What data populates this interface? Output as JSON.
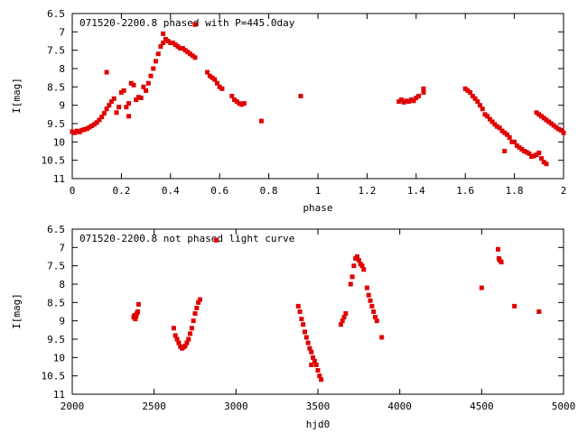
{
  "chart_data": [
    {
      "type": "scatter",
      "title": "071520-2200.8 phased with P=445.0day",
      "xlabel": "phase",
      "ylabel": "I[mag]",
      "xlim": [
        0,
        2
      ],
      "ylim": [
        11,
        6.5
      ],
      "y_inverted": true,
      "grid": false,
      "marker_color": "#e00000",
      "x_ticks": [
        {
          "v": 0,
          "label": "0"
        },
        {
          "v": 0.2,
          "label": "0.2"
        },
        {
          "v": 0.4,
          "label": "0.4"
        },
        {
          "v": 0.6,
          "label": "0.6"
        },
        {
          "v": 0.8,
          "label": "0.8"
        },
        {
          "v": 1,
          "label": "1"
        },
        {
          "v": 1.2,
          "label": "1.2"
        },
        {
          "v": 1.4,
          "label": "1.4"
        },
        {
          "v": 1.6,
          "label": "1.6"
        },
        {
          "v": 1.8,
          "label": "1.8"
        },
        {
          "v": 2,
          "label": "2"
        }
      ],
      "y_ticks": [
        {
          "v": 6.5,
          "label": "6.5"
        },
        {
          "v": 7,
          "label": "7"
        },
        {
          "v": 7.5,
          "label": "7.5"
        },
        {
          "v": 8,
          "label": "8"
        },
        {
          "v": 8.5,
          "label": "8.5"
        },
        {
          "v": 9,
          "label": "9"
        },
        {
          "v": 9.5,
          "label": "9.5"
        },
        {
          "v": 10,
          "label": "10"
        },
        {
          "v": 10.5,
          "label": "10.5"
        },
        {
          "v": 11,
          "label": "11"
        }
      ],
      "points": [
        [
          0.0,
          9.72
        ],
        [
          0.01,
          9.75
        ],
        [
          0.02,
          9.7
        ],
        [
          0.03,
          9.73
        ],
        [
          0.04,
          9.68
        ],
        [
          0.05,
          9.66
        ],
        [
          0.06,
          9.64
        ],
        [
          0.07,
          9.6
        ],
        [
          0.08,
          9.56
        ],
        [
          0.09,
          9.52
        ],
        [
          0.1,
          9.47
        ],
        [
          0.11,
          9.4
        ],
        [
          0.12,
          9.32
        ],
        [
          0.13,
          9.22
        ],
        [
          0.14,
          9.1
        ],
        [
          0.15,
          9.0
        ],
        [
          0.16,
          8.9
        ],
        [
          0.17,
          8.82
        ],
        [
          0.14,
          8.1
        ],
        [
          0.18,
          9.2
        ],
        [
          0.19,
          9.05
        ],
        [
          0.2,
          8.65
        ],
        [
          0.21,
          8.6
        ],
        [
          0.22,
          9.05
        ],
        [
          0.23,
          8.95
        ],
        [
          0.24,
          8.4
        ],
        [
          0.25,
          8.45
        ],
        [
          0.26,
          8.85
        ],
        [
          0.27,
          8.78
        ],
        [
          0.28,
          8.8
        ],
        [
          0.29,
          8.5
        ],
        [
          0.23,
          9.3
        ],
        [
          0.3,
          8.6
        ],
        [
          0.31,
          8.4
        ],
        [
          0.32,
          8.2
        ],
        [
          0.33,
          8.0
        ],
        [
          0.34,
          7.8
        ],
        [
          0.35,
          7.6
        ],
        [
          0.36,
          7.4
        ],
        [
          0.37,
          7.3
        ],
        [
          0.38,
          7.2
        ],
        [
          0.37,
          7.05
        ],
        [
          0.39,
          7.25
        ],
        [
          0.4,
          7.3
        ],
        [
          0.41,
          7.3
        ],
        [
          0.42,
          7.35
        ],
        [
          0.43,
          7.4
        ],
        [
          0.44,
          7.45
        ],
        [
          0.45,
          7.45
        ],
        [
          0.46,
          7.5
        ],
        [
          0.47,
          7.55
        ],
        [
          0.48,
          7.6
        ],
        [
          0.49,
          7.65
        ],
        [
          0.5,
          7.7
        ],
        [
          0.5,
          6.8
        ],
        [
          0.55,
          8.1
        ],
        [
          0.56,
          8.2
        ],
        [
          0.57,
          8.25
        ],
        [
          0.58,
          8.3
        ],
        [
          0.59,
          8.4
        ],
        [
          0.6,
          8.5
        ],
        [
          0.61,
          8.55
        ],
        [
          0.65,
          8.75
        ],
        [
          0.66,
          8.85
        ],
        [
          0.67,
          8.9
        ],
        [
          0.68,
          8.95
        ],
        [
          0.69,
          8.98
        ],
        [
          0.7,
          8.95
        ],
        [
          0.77,
          9.43
        ],
        [
          0.93,
          8.75
        ],
        [
          1.33,
          8.9
        ],
        [
          1.34,
          8.85
        ],
        [
          1.35,
          8.92
        ],
        [
          1.36,
          8.88
        ],
        [
          1.37,
          8.9
        ],
        [
          1.38,
          8.85
        ],
        [
          1.39,
          8.88
        ],
        [
          1.4,
          8.8
        ],
        [
          1.41,
          8.75
        ],
        [
          1.43,
          8.55
        ],
        [
          1.43,
          8.65
        ],
        [
          1.6,
          8.55
        ],
        [
          1.61,
          8.6
        ],
        [
          1.62,
          8.65
        ],
        [
          1.63,
          8.75
        ],
        [
          1.64,
          8.82
        ],
        [
          1.65,
          8.9
        ],
        [
          1.66,
          9.0
        ],
        [
          1.67,
          9.1
        ],
        [
          1.68,
          9.25
        ],
        [
          1.69,
          9.3
        ],
        [
          1.7,
          9.38
        ],
        [
          1.71,
          9.45
        ],
        [
          1.72,
          9.52
        ],
        [
          1.73,
          9.58
        ],
        [
          1.74,
          9.62
        ],
        [
          1.75,
          9.7
        ],
        [
          1.76,
          9.75
        ],
        [
          1.77,
          9.8
        ],
        [
          1.78,
          9.88
        ],
        [
          1.79,
          10.0
        ],
        [
          1.8,
          10.0
        ],
        [
          1.76,
          10.25
        ],
        [
          1.81,
          10.1
        ],
        [
          1.82,
          10.15
        ],
        [
          1.83,
          10.2
        ],
        [
          1.84,
          10.25
        ],
        [
          1.85,
          10.28
        ],
        [
          1.86,
          10.32
        ],
        [
          1.87,
          10.4
        ],
        [
          1.88,
          10.38
        ],
        [
          1.89,
          10.35
        ],
        [
          1.9,
          10.3
        ],
        [
          1.91,
          10.45
        ],
        [
          1.92,
          10.55
        ],
        [
          1.93,
          10.6
        ],
        [
          1.89,
          9.2
        ],
        [
          1.9,
          9.25
        ],
        [
          1.91,
          9.3
        ],
        [
          1.92,
          9.35
        ],
        [
          1.93,
          9.4
        ],
        [
          1.94,
          9.45
        ],
        [
          1.95,
          9.5
        ],
        [
          1.96,
          9.55
        ],
        [
          1.97,
          9.6
        ],
        [
          1.98,
          9.65
        ],
        [
          1.99,
          9.68
        ],
        [
          2.0,
          9.75
        ]
      ]
    },
    {
      "type": "scatter",
      "title": "071520-2200.8 not phased light curve",
      "xlabel": "hjd0",
      "ylabel": "I[mag]",
      "xlim": [
        2000,
        5000
      ],
      "ylim": [
        11,
        6.5
      ],
      "y_inverted": true,
      "grid": false,
      "marker_color": "#e00000",
      "x_ticks": [
        {
          "v": 2000,
          "label": "2000"
        },
        {
          "v": 2500,
          "label": "2500"
        },
        {
          "v": 3000,
          "label": "3000"
        },
        {
          "v": 3500,
          "label": "3500"
        },
        {
          "v": 4000,
          "label": "4000"
        },
        {
          "v": 4500,
          "label": "4500"
        },
        {
          "v": 5000,
          "label": "5000"
        }
      ],
      "y_ticks": [
        {
          "v": 6.5,
          "label": "6.5"
        },
        {
          "v": 7,
          "label": "7"
        },
        {
          "v": 7.5,
          "label": "7.5"
        },
        {
          "v": 8,
          "label": "8"
        },
        {
          "v": 8.5,
          "label": "8.5"
        },
        {
          "v": 9,
          "label": "9"
        },
        {
          "v": 9.5,
          "label": "9.5"
        },
        {
          "v": 10,
          "label": "10"
        },
        {
          "v": 10.5,
          "label": "10.5"
        },
        {
          "v": 11,
          "label": "11"
        }
      ],
      "points": [
        [
          2375,
          8.9
        ],
        [
          2380,
          8.85
        ],
        [
          2385,
          8.95
        ],
        [
          2390,
          8.88
        ],
        [
          2395,
          8.8
        ],
        [
          2400,
          8.75
        ],
        [
          2405,
          8.55
        ],
        [
          2620,
          9.2
        ],
        [
          2630,
          9.4
        ],
        [
          2640,
          9.5
        ],
        [
          2650,
          9.6
        ],
        [
          2660,
          9.7
        ],
        [
          2670,
          9.75
        ],
        [
          2680,
          9.72
        ],
        [
          2690,
          9.68
        ],
        [
          2700,
          9.6
        ],
        [
          2710,
          9.5
        ],
        [
          2720,
          9.35
        ],
        [
          2730,
          9.2
        ],
        [
          2740,
          9.0
        ],
        [
          2750,
          8.8
        ],
        [
          2760,
          8.65
        ],
        [
          2770,
          8.5
        ],
        [
          2780,
          8.42
        ],
        [
          2880,
          6.8
        ],
        [
          3380,
          8.6
        ],
        [
          3390,
          8.75
        ],
        [
          3400,
          8.95
        ],
        [
          3410,
          9.1
        ],
        [
          3420,
          9.3
        ],
        [
          3430,
          9.45
        ],
        [
          3440,
          9.6
        ],
        [
          3450,
          9.75
        ],
        [
          3460,
          9.85
        ],
        [
          3470,
          10.0
        ],
        [
          3480,
          10.1
        ],
        [
          3490,
          10.2
        ],
        [
          3500,
          10.35
        ],
        [
          3510,
          10.5
        ],
        [
          3520,
          10.6
        ],
        [
          3460,
          10.2
        ],
        [
          3640,
          9.1
        ],
        [
          3650,
          9.0
        ],
        [
          3660,
          8.9
        ],
        [
          3670,
          8.8
        ],
        [
          3700,
          8.0
        ],
        [
          3710,
          7.8
        ],
        [
          3720,
          7.5
        ],
        [
          3730,
          7.3
        ],
        [
          3740,
          7.25
        ],
        [
          3750,
          7.35
        ],
        [
          3760,
          7.45
        ],
        [
          3770,
          7.5
        ],
        [
          3780,
          7.6
        ],
        [
          3800,
          8.1
        ],
        [
          3810,
          8.3
        ],
        [
          3820,
          8.45
        ],
        [
          3830,
          8.6
        ],
        [
          3840,
          8.75
        ],
        [
          3850,
          8.9
        ],
        [
          3860,
          9.0
        ],
        [
          3890,
          9.45
        ],
        [
          4500,
          8.1
        ],
        [
          4600,
          7.05
        ],
        [
          4605,
          7.3
        ],
        [
          4610,
          7.35
        ],
        [
          4620,
          7.4
        ],
        [
          4700,
          8.6
        ],
        [
          4850,
          8.75
        ]
      ]
    }
  ]
}
